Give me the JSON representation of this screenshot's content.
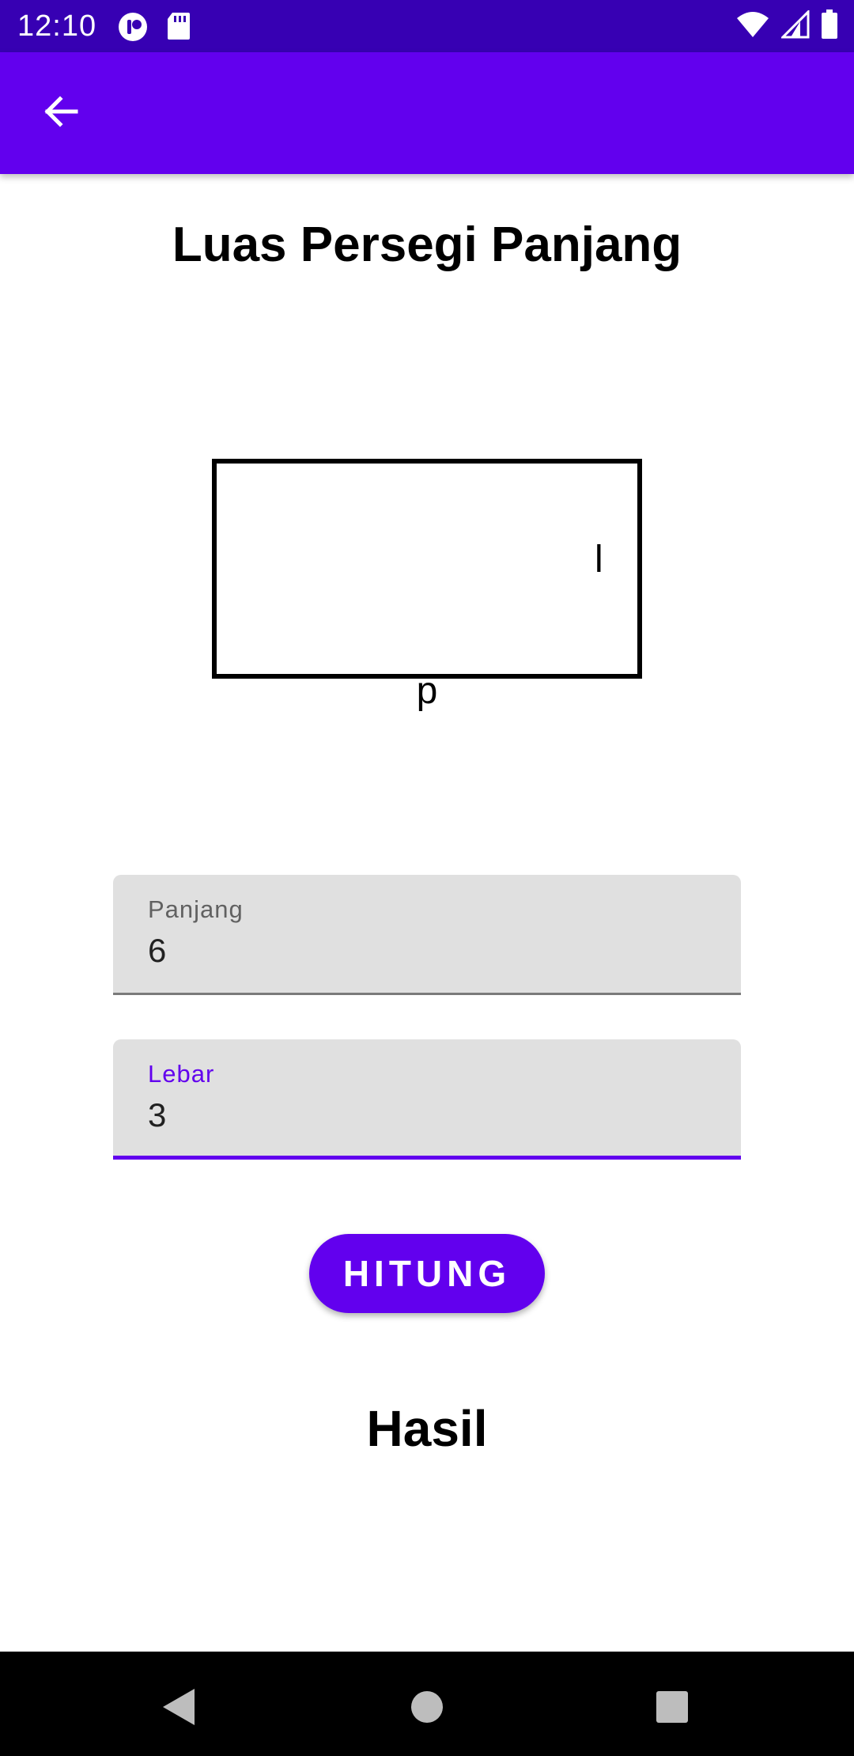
{
  "status_bar": {
    "time": "12:10",
    "icons": [
      "app-notification-icon",
      "sd-card-icon",
      "wifi-icon",
      "signal-icon",
      "battery-icon"
    ]
  },
  "app_bar": {
    "back_icon": "arrow-back-icon",
    "background_color": "#6200EE"
  },
  "main": {
    "title": "Luas Persegi Panjang",
    "diagram": {
      "label_length": "p",
      "label_width": "l"
    },
    "fields": {
      "panjang": {
        "label": "Panjang",
        "value": "6"
      },
      "lebar": {
        "label": "Lebar",
        "value": "3"
      }
    },
    "button_label": "HITUNG",
    "result_label": "Hasil"
  },
  "nav_bar": {
    "icons": [
      "back-triangle-icon",
      "home-circle-icon",
      "recents-square-icon"
    ]
  },
  "colors": {
    "primary": "#6200EE",
    "primary_dark": "#3700B3"
  }
}
